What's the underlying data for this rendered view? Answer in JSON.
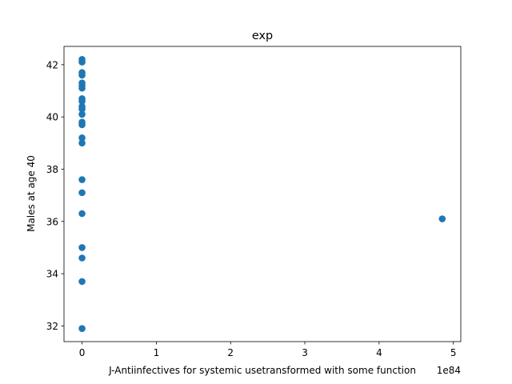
{
  "chart_data": {
    "type": "scatter",
    "title": "exp",
    "xlabel": "J-Antiinfectives for systemic usetransformed with some function",
    "ylabel": "Males at age 40",
    "x_offset_label": "1e84",
    "xlim": [
      -0.243,
      5.1
    ],
    "ylim": [
      31.4,
      42.7
    ],
    "xticks": [
      0,
      1,
      2,
      3,
      4,
      5
    ],
    "xtick_labels": [
      "0",
      "1",
      "2",
      "3",
      "4",
      "5"
    ],
    "yticks": [
      32,
      34,
      36,
      38,
      40,
      42
    ],
    "ytick_labels": [
      "32",
      "34",
      "36",
      "38",
      "40",
      "42"
    ],
    "grid": false,
    "marker_color": "#1f77b4",
    "points": [
      {
        "x": 0,
        "y": 42.2
      },
      {
        "x": 0,
        "y": 42.1
      },
      {
        "x": 0,
        "y": 41.7
      },
      {
        "x": 0,
        "y": 41.6
      },
      {
        "x": 0,
        "y": 41.3
      },
      {
        "x": 0,
        "y": 41.2
      },
      {
        "x": 0,
        "y": 41.1
      },
      {
        "x": 0,
        "y": 40.7
      },
      {
        "x": 0,
        "y": 40.6
      },
      {
        "x": 0,
        "y": 40.4
      },
      {
        "x": 0,
        "y": 40.3
      },
      {
        "x": 0,
        "y": 40.1
      },
      {
        "x": 0,
        "y": 39.8
      },
      {
        "x": 0,
        "y": 39.7
      },
      {
        "x": 0,
        "y": 39.2
      },
      {
        "x": 0,
        "y": 39.0
      },
      {
        "x": 0,
        "y": 37.6
      },
      {
        "x": 0,
        "y": 37.1
      },
      {
        "x": 0,
        "y": 36.3
      },
      {
        "x": 0,
        "y": 35.0
      },
      {
        "x": 0,
        "y": 34.6
      },
      {
        "x": 0,
        "y": 33.7
      },
      {
        "x": 0,
        "y": 31.9
      },
      {
        "x": 4.85,
        "y": 36.1
      }
    ]
  }
}
